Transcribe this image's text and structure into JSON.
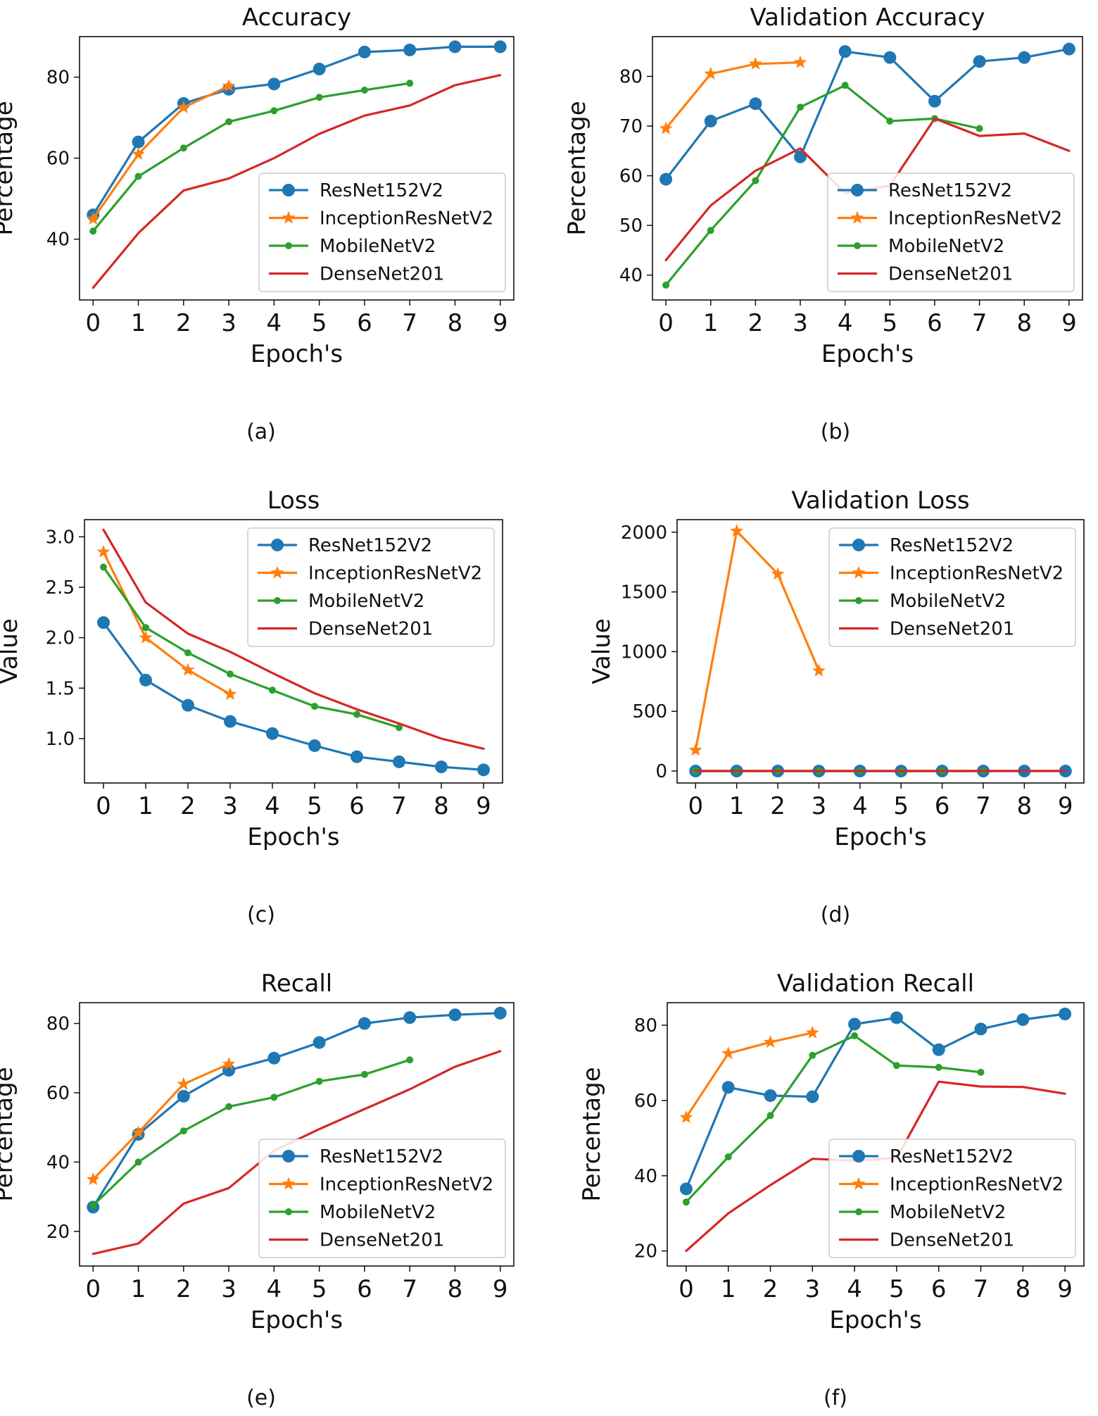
{
  "figure": {
    "captions": [
      "(a)",
      "(b)",
      "(c)",
      "(d)",
      "(e)",
      "(f)"
    ],
    "colors": {
      "ResNet152V2": "#1f77b4",
      "InceptionResNetV2": "#ff7f0e",
      "MobileNetV2": "#2ca02c",
      "DenseNet201": "#d62728"
    }
  },
  "chart_data": [
    {
      "type": "line",
      "title": "Accuracy",
      "xlabel": "Epoch's",
      "ylabel": "Percentage",
      "xlim": [
        -0.3,
        9.3
      ],
      "ylim": [
        25,
        90
      ],
      "xticks": [
        0,
        1,
        2,
        3,
        4,
        5,
        6,
        7,
        8,
        9
      ],
      "yticks": [
        40,
        60,
        80
      ],
      "legend": "lower-right",
      "series": [
        {
          "name": "ResNet152V2",
          "marker": "circle",
          "x": [
            0,
            1,
            2,
            3,
            4,
            5,
            6,
            7,
            8,
            9
          ],
          "values": [
            46,
            64,
            73.5,
            77,
            78.3,
            82,
            86.2,
            86.7,
            87.5,
            87.5
          ]
        },
        {
          "name": "InceptionResNetV2",
          "marker": "star",
          "x": [
            0,
            1,
            2,
            3
          ],
          "values": [
            45,
            61,
            72.5,
            77.8
          ]
        },
        {
          "name": "MobileNetV2",
          "marker": "dot",
          "x": [
            0,
            1,
            2,
            3,
            4,
            5,
            6,
            7
          ],
          "values": [
            42,
            55.5,
            62.5,
            69,
            71.7,
            75,
            76.8,
            78.5
          ]
        },
        {
          "name": "DenseNet201",
          "marker": "none",
          "x": [
            0,
            1,
            2,
            3,
            4,
            5,
            6,
            7,
            8,
            9
          ],
          "values": [
            28,
            41.5,
            52,
            55,
            60,
            66,
            70.5,
            73,
            78,
            80.5
          ]
        }
      ]
    },
    {
      "type": "line",
      "title": "Validation Accuracy",
      "xlabel": "Epoch's",
      "ylabel": "Percentage",
      "xlim": [
        -0.3,
        9.3
      ],
      "ylim": [
        35,
        88
      ],
      "xticks": [
        0,
        1,
        2,
        3,
        4,
        5,
        6,
        7,
        8,
        9
      ],
      "yticks": [
        40,
        50,
        60,
        70,
        80
      ],
      "legend": "lower-right",
      "series": [
        {
          "name": "ResNet152V2",
          "marker": "circle",
          "x": [
            0,
            1,
            2,
            3,
            4,
            5,
            6,
            7,
            8,
            9
          ],
          "values": [
            59.3,
            71,
            74.5,
            63.8,
            85,
            83.8,
            75,
            83,
            83.8,
            85.5
          ]
        },
        {
          "name": "InceptionResNetV2",
          "marker": "star",
          "x": [
            0,
            1,
            2,
            3
          ],
          "values": [
            69.5,
            80.5,
            82.5,
            82.8
          ]
        },
        {
          "name": "MobileNetV2",
          "marker": "dot",
          "x": [
            0,
            1,
            2,
            3,
            4,
            5,
            6,
            7
          ],
          "values": [
            38,
            49,
            59,
            73.8,
            78.2,
            71,
            71.5,
            69.5
          ]
        },
        {
          "name": "DenseNet201",
          "marker": "none",
          "x": [
            0,
            1,
            2,
            3,
            4,
            5,
            6,
            7,
            8,
            9
          ],
          "values": [
            43,
            54,
            61,
            65.5,
            56.5,
            58,
            71.5,
            68,
            68.5,
            65
          ]
        }
      ]
    },
    {
      "type": "line",
      "title": "Loss",
      "xlabel": "Epoch's",
      "ylabel": "Value",
      "xlim": [
        -0.45,
        9.45
      ],
      "ylim": [
        0.56,
        3.17
      ],
      "xticks": [
        0,
        1,
        2,
        3,
        4,
        5,
        6,
        7,
        8,
        9
      ],
      "yticks": [
        1.0,
        1.5,
        2.0,
        2.5,
        3.0
      ],
      "ytick_labels": [
        "1.0",
        "1.5",
        "2.0",
        "2.5",
        "3.0"
      ],
      "legend": "upper-right",
      "series": [
        {
          "name": "ResNet152V2",
          "marker": "circle",
          "x": [
            0,
            1,
            2,
            3,
            4,
            5,
            6,
            7,
            8,
            9
          ],
          "values": [
            2.15,
            1.58,
            1.33,
            1.17,
            1.05,
            0.93,
            0.82,
            0.77,
            0.72,
            0.69
          ]
        },
        {
          "name": "InceptionResNetV2",
          "marker": "star",
          "x": [
            0,
            1,
            2,
            3
          ],
          "values": [
            2.85,
            2.0,
            1.68,
            1.44
          ]
        },
        {
          "name": "MobileNetV2",
          "marker": "dot",
          "x": [
            0,
            1,
            2,
            3,
            4,
            5,
            6,
            7
          ],
          "values": [
            2.7,
            2.1,
            1.85,
            1.64,
            1.48,
            1.32,
            1.24,
            1.11
          ]
        },
        {
          "name": "DenseNet201",
          "marker": "none",
          "x": [
            0,
            1,
            2,
            3,
            4,
            5,
            6,
            7,
            8,
            9
          ],
          "values": [
            3.07,
            2.35,
            2.04,
            1.86,
            1.65,
            1.45,
            1.29,
            1.15,
            1.0,
            0.9
          ]
        }
      ]
    },
    {
      "type": "line",
      "title": "Validation Loss",
      "xlabel": "Epoch's",
      "ylabel": "Value",
      "xlim": [
        -0.45,
        9.45
      ],
      "ylim": [
        -100,
        2105
      ],
      "xticks": [
        0,
        1,
        2,
        3,
        4,
        5,
        6,
        7,
        8,
        9
      ],
      "yticks": [
        0,
        500,
        1000,
        1500,
        2000
      ],
      "legend": "upper-right",
      "series": [
        {
          "name": "ResNet152V2",
          "marker": "circle",
          "x": [
            0,
            1,
            2,
            3,
            4,
            5,
            6,
            7,
            8,
            9
          ],
          "values": [
            0,
            0,
            0,
            0,
            0,
            0,
            0,
            0,
            0,
            0
          ]
        },
        {
          "name": "InceptionResNetV2",
          "marker": "star",
          "x": [
            0,
            1,
            2,
            3
          ],
          "values": [
            175,
            2010,
            1650,
            840
          ]
        },
        {
          "name": "MobileNetV2",
          "marker": "dot",
          "x": [
            0,
            1,
            2,
            3,
            4,
            5,
            6,
            7
          ],
          "values": [
            0,
            0,
            0,
            0,
            0,
            0,
            0,
            0
          ]
        },
        {
          "name": "DenseNet201",
          "marker": "none",
          "x": [
            0,
            1,
            2,
            3,
            4,
            5,
            6,
            7,
            8,
            9
          ],
          "values": [
            0,
            0,
            0,
            0,
            0,
            0,
            0,
            0,
            0,
            0
          ]
        }
      ]
    },
    {
      "type": "line",
      "title": "Recall",
      "xlabel": "Epoch's",
      "ylabel": "Percentage",
      "xlim": [
        -0.3,
        9.3
      ],
      "ylim": [
        10,
        86
      ],
      "xticks": [
        0,
        1,
        2,
        3,
        4,
        5,
        6,
        7,
        8,
        9
      ],
      "yticks": [
        20,
        40,
        60,
        80
      ],
      "legend": "lower-right",
      "series": [
        {
          "name": "ResNet152V2",
          "marker": "circle",
          "x": [
            0,
            1,
            2,
            3,
            4,
            5,
            6,
            7,
            8,
            9
          ],
          "values": [
            27,
            48,
            59,
            66.5,
            70,
            74.5,
            80,
            81.7,
            82.5,
            83
          ]
        },
        {
          "name": "InceptionResNetV2",
          "marker": "star",
          "x": [
            0,
            1,
            2,
            3
          ],
          "values": [
            35,
            48.5,
            62.5,
            68.3
          ]
        },
        {
          "name": "MobileNetV2",
          "marker": "dot",
          "x": [
            0,
            1,
            2,
            3,
            4,
            5,
            6,
            7
          ],
          "values": [
            27.5,
            40,
            49,
            56,
            58.7,
            63.3,
            65.3,
            69.5
          ]
        },
        {
          "name": "DenseNet201",
          "marker": "none",
          "x": [
            0,
            1,
            2,
            3,
            4,
            5,
            6,
            7,
            8,
            9
          ],
          "values": [
            13.5,
            16.5,
            28,
            32.5,
            43.3,
            49.5,
            55.3,
            61,
            67.5,
            72
          ]
        }
      ]
    },
    {
      "type": "line",
      "title": "Validation Recall",
      "xlabel": "Epoch's",
      "ylabel": "Percentage",
      "xlim": [
        -0.45,
        9.45
      ],
      "ylim": [
        16,
        86
      ],
      "xticks": [
        0,
        1,
        2,
        3,
        4,
        5,
        6,
        7,
        8,
        9
      ],
      "yticks": [
        20,
        40,
        60,
        80
      ],
      "legend": "lower-right",
      "series": [
        {
          "name": "ResNet152V2",
          "marker": "circle",
          "x": [
            0,
            1,
            2,
            3,
            4,
            5,
            6,
            7,
            8,
            9
          ],
          "values": [
            36.5,
            63.5,
            61.3,
            61,
            80.3,
            82,
            73.5,
            79,
            81.5,
            83
          ]
        },
        {
          "name": "InceptionResNetV2",
          "marker": "star",
          "x": [
            0,
            1,
            2,
            3
          ],
          "values": [
            55.5,
            72.5,
            75.5,
            78
          ]
        },
        {
          "name": "MobileNetV2",
          "marker": "dot",
          "x": [
            0,
            1,
            2,
            3,
            4,
            5,
            6,
            7
          ],
          "values": [
            33,
            45,
            56,
            72,
            77.2,
            69.3,
            68.8,
            67.5
          ]
        },
        {
          "name": "DenseNet201",
          "marker": "none",
          "x": [
            0,
            1,
            2,
            3,
            4,
            5,
            6,
            7,
            8,
            9
          ],
          "values": [
            20,
            30,
            37.5,
            44.5,
            44,
            44.7,
            65,
            63.7,
            63.6,
            61.8
          ]
        }
      ]
    }
  ]
}
